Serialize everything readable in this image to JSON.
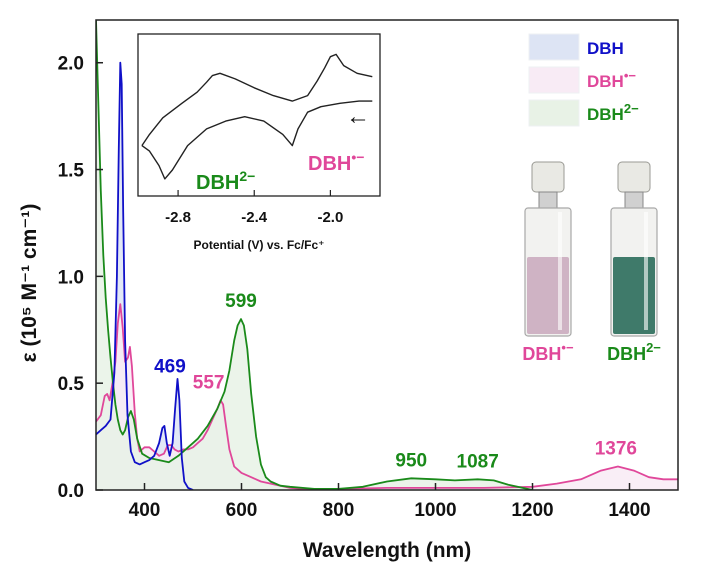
{
  "chart_data": {
    "type": "line",
    "xlabel": "Wavelength (nm)",
    "ylabel": "ε (10⁵ M⁻¹ cm⁻¹)",
    "xlim": [
      300,
      1500
    ],
    "ylim": [
      0,
      2.2
    ],
    "x_ticks": [
      400,
      600,
      800,
      1000,
      1200,
      1400
    ],
    "y_ticks": [
      0.0,
      0.5,
      1.0,
      1.5,
      2.0
    ],
    "x_tick_labels": [
      "400",
      "600",
      "800",
      "1000",
      "1200",
      "1400"
    ],
    "y_tick_labels": [
      "0.0",
      "0.5",
      "1.0",
      "1.5",
      "2.0"
    ],
    "series": [
      {
        "name": "DBH",
        "color": "#1010c8",
        "fill": "#dde4f4",
        "points": [
          [
            300,
            0.26
          ],
          [
            310,
            0.28
          ],
          [
            320,
            0.3
          ],
          [
            330,
            0.33
          ],
          [
            338,
            0.55
          ],
          [
            343,
            1.0
          ],
          [
            347,
            1.6
          ],
          [
            350,
            2.0
          ],
          [
            353,
            1.9
          ],
          [
            356,
            1.3
          ],
          [
            360,
            0.7
          ],
          [
            365,
            0.35
          ],
          [
            372,
            0.18
          ],
          [
            380,
            0.13
          ],
          [
            390,
            0.12
          ],
          [
            400,
            0.13
          ],
          [
            410,
            0.14
          ],
          [
            420,
            0.16
          ],
          [
            430,
            0.22
          ],
          [
            437,
            0.29
          ],
          [
            441,
            0.3
          ],
          [
            446,
            0.22
          ],
          [
            452,
            0.16
          ],
          [
            458,
            0.22
          ],
          [
            463,
            0.38
          ],
          [
            468,
            0.52
          ],
          [
            472,
            0.42
          ],
          [
            477,
            0.15
          ],
          [
            482,
            0.04
          ],
          [
            490,
            0.01
          ],
          [
            500,
            0.0
          ]
        ]
      },
      {
        "name": "DBH•−",
        "color": "#e0479a",
        "fill": "#f8ebf5",
        "points": [
          [
            300,
            0.32
          ],
          [
            310,
            0.35
          ],
          [
            318,
            0.44
          ],
          [
            323,
            0.45
          ],
          [
            328,
            0.42
          ],
          [
            334,
            0.5
          ],
          [
            340,
            0.6
          ],
          [
            345,
            0.78
          ],
          [
            350,
            0.87
          ],
          [
            355,
            0.76
          ],
          [
            360,
            0.6
          ],
          [
            366,
            0.62
          ],
          [
            370,
            0.67
          ],
          [
            374,
            0.58
          ],
          [
            380,
            0.36
          ],
          [
            385,
            0.24
          ],
          [
            390,
            0.18
          ],
          [
            400,
            0.2
          ],
          [
            410,
            0.2
          ],
          [
            420,
            0.18
          ],
          [
            430,
            0.16
          ],
          [
            440,
            0.17
          ],
          [
            448,
            0.21
          ],
          [
            455,
            0.21
          ],
          [
            462,
            0.19
          ],
          [
            470,
            0.18
          ],
          [
            480,
            0.19
          ],
          [
            490,
            0.19
          ],
          [
            500,
            0.2
          ],
          [
            510,
            0.22
          ],
          [
            520,
            0.24
          ],
          [
            530,
            0.28
          ],
          [
            540,
            0.33
          ],
          [
            550,
            0.38
          ],
          [
            557,
            0.42
          ],
          [
            562,
            0.4
          ],
          [
            568,
            0.3
          ],
          [
            575,
            0.19
          ],
          [
            585,
            0.11
          ],
          [
            600,
            0.08
          ],
          [
            620,
            0.06
          ],
          [
            640,
            0.04
          ],
          [
            660,
            0.03
          ],
          [
            680,
            0.02
          ],
          [
            700,
            0.01
          ],
          [
            750,
            0.0
          ],
          [
            800,
            0.005
          ],
          [
            900,
            0.01
          ],
          [
            1000,
            0.01
          ],
          [
            1100,
            0.01
          ],
          [
            1200,
            0.015
          ],
          [
            1250,
            0.03
          ],
          [
            1300,
            0.05
          ],
          [
            1340,
            0.09
          ],
          [
            1376,
            0.11
          ],
          [
            1410,
            0.09
          ],
          [
            1440,
            0.06
          ],
          [
            1470,
            0.05
          ],
          [
            1500,
            0.05
          ]
        ]
      },
      {
        "name": "DBH2−",
        "color": "#1a8a1a",
        "fill": "#e8f2e6",
        "points": [
          [
            300,
            2.2
          ],
          [
            305,
            1.8
          ],
          [
            310,
            1.4
          ],
          [
            315,
            1.1
          ],
          [
            320,
            0.9
          ],
          [
            325,
            0.75
          ],
          [
            330,
            0.62
          ],
          [
            335,
            0.5
          ],
          [
            340,
            0.4
          ],
          [
            345,
            0.33
          ],
          [
            350,
            0.28
          ],
          [
            355,
            0.26
          ],
          [
            360,
            0.28
          ],
          [
            366,
            0.34
          ],
          [
            372,
            0.37
          ],
          [
            378,
            0.33
          ],
          [
            385,
            0.24
          ],
          [
            395,
            0.17
          ],
          [
            410,
            0.15
          ],
          [
            430,
            0.14
          ],
          [
            450,
            0.13
          ],
          [
            470,
            0.16
          ],
          [
            490,
            0.2
          ],
          [
            510,
            0.24
          ],
          [
            530,
            0.3
          ],
          [
            550,
            0.38
          ],
          [
            565,
            0.46
          ],
          [
            575,
            0.56
          ],
          [
            585,
            0.7
          ],
          [
            592,
            0.77
          ],
          [
            599,
            0.8
          ],
          [
            605,
            0.77
          ],
          [
            612,
            0.66
          ],
          [
            620,
            0.45
          ],
          [
            630,
            0.25
          ],
          [
            640,
            0.12
          ],
          [
            650,
            0.06
          ],
          [
            660,
            0.04
          ],
          [
            680,
            0.02
          ],
          [
            700,
            0.015
          ],
          [
            750,
            0.005
          ],
          [
            800,
            0.005
          ],
          [
            850,
            0.015
          ],
          [
            900,
            0.04
          ],
          [
            950,
            0.055
          ],
          [
            1000,
            0.05
          ],
          [
            1040,
            0.045
          ],
          [
            1087,
            0.05
          ],
          [
            1120,
            0.045
          ],
          [
            1150,
            0.025
          ],
          [
            1180,
            0.01
          ],
          [
            1200,
            0.0
          ]
        ]
      }
    ],
    "peak_labels": [
      {
        "text": "469",
        "x": 469,
        "series": "DBH"
      },
      {
        "text": "557",
        "x": 557,
        "series": "DBH•−"
      },
      {
        "text": "599",
        "x": 599,
        "series": "DBH2−"
      },
      {
        "text": "950",
        "x": 950,
        "series": "DBH2−"
      },
      {
        "text": "1087",
        "x": 1087,
        "series": "DBH2−"
      },
      {
        "text": "1376",
        "x": 1376,
        "series": "DBH•−"
      }
    ],
    "legend": {
      "placement": "top-right",
      "entries": [
        {
          "series": "DBH",
          "label_main": "DBH",
          "label_sup": ""
        },
        {
          "series": "DBH•−",
          "label_main": "DBH",
          "label_sup": "•−"
        },
        {
          "series": "DBH2−",
          "label_main": "DBH",
          "label_sup": "2−"
        }
      ]
    },
    "inset": {
      "type": "cyclic-voltammogram",
      "xlabel": "Potential (V) vs. Fc/Fc⁺",
      "xlim": [
        -3.0,
        -1.75
      ],
      "x_ticks": [
        -2.8,
        -2.4,
        -2.0
      ],
      "x_tick_labels": [
        "-2.8",
        "-2.4",
        "-2.0"
      ],
      "forward_scan": [
        [
          -1.78,
          0.8
        ],
        [
          -1.85,
          0.8
        ],
        [
          -1.95,
          0.78
        ],
        [
          -2.05,
          0.75
        ],
        [
          -2.12,
          0.7
        ],
        [
          -2.17,
          0.55
        ],
        [
          -2.2,
          0.4
        ],
        [
          -2.25,
          0.5
        ],
        [
          -2.35,
          0.62
        ],
        [
          -2.45,
          0.66
        ],
        [
          -2.55,
          0.62
        ],
        [
          -2.65,
          0.55
        ],
        [
          -2.75,
          0.4
        ],
        [
          -2.83,
          0.18
        ],
        [
          -2.87,
          0.1
        ],
        [
          -2.9,
          0.22
        ],
        [
          -2.95,
          0.35
        ],
        [
          -2.99,
          0.4
        ]
      ],
      "reverse_scan": [
        [
          -2.99,
          0.4
        ],
        [
          -2.95,
          0.5
        ],
        [
          -2.88,
          0.65
        ],
        [
          -2.78,
          0.78
        ],
        [
          -2.7,
          0.88
        ],
        [
          -2.65,
          0.97
        ],
        [
          -2.62,
          1.03
        ],
        [
          -2.58,
          1.05
        ],
        [
          -2.5,
          1.0
        ],
        [
          -2.4,
          0.92
        ],
        [
          -2.3,
          0.85
        ],
        [
          -2.2,
          0.8
        ],
        [
          -2.12,
          0.85
        ],
        [
          -2.07,
          0.98
        ],
        [
          -2.03,
          1.1
        ],
        [
          -2.0,
          1.2
        ],
        [
          -1.97,
          1.22
        ],
        [
          -1.93,
          1.12
        ],
        [
          -1.86,
          1.05
        ],
        [
          -1.78,
          1.02
        ]
      ],
      "arrow_symbol": "←",
      "labels": [
        {
          "main": "DBH",
          "sup": "2−",
          "series": "DBH2−"
        },
        {
          "main": "DBH",
          "sup": "•−",
          "series": "DBH•−"
        }
      ]
    },
    "vials": [
      {
        "label_main": "DBH",
        "label_sup": "•−",
        "series": "DBH•−",
        "liquid": "#cfb3c4"
      },
      {
        "label_main": "DBH",
        "label_sup": "2−",
        "series": "DBH2−",
        "liquid": "#3f7a6a"
      }
    ]
  }
}
